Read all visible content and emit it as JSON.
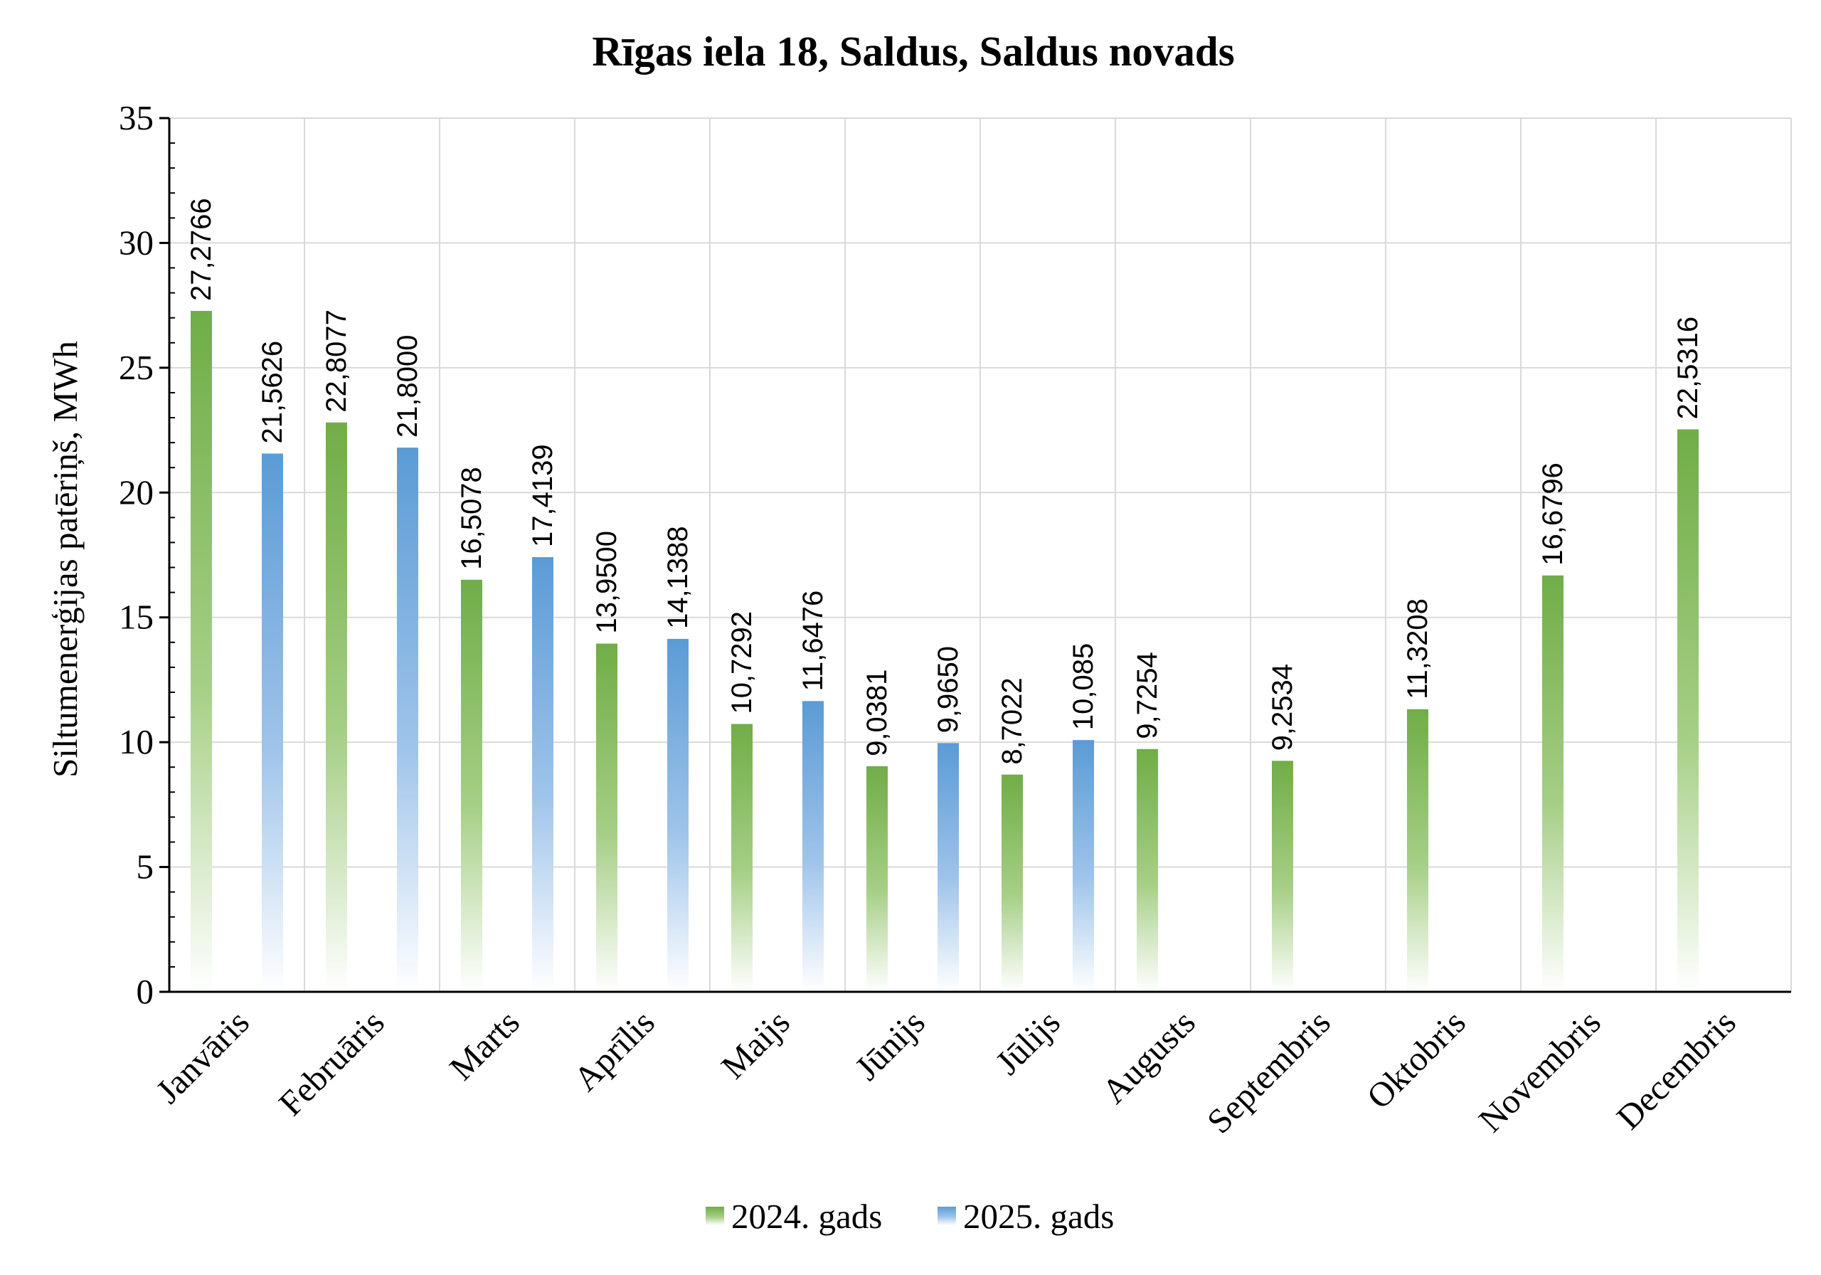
{
  "chart_data": {
    "type": "bar",
    "title": "Rīgas iela 18, Saldus, Saldus novads",
    "xlabel": "",
    "ylabel": "Siltumenerģijas patēriņš, MWh",
    "ylim": [
      0,
      35
    ],
    "yticks": [
      0,
      5,
      10,
      15,
      20,
      25,
      30,
      35
    ],
    "grid": true,
    "legend_position": "bottom",
    "categories": [
      "Janvāris",
      "Februāris",
      "Marts",
      "Aprīlis",
      "Maijs",
      "Jūnijs",
      "Jūlijs",
      "Augusts",
      "Septembris",
      "Oktobris",
      "Novembris",
      "Decembris"
    ],
    "series": [
      {
        "name": "2024. gads",
        "color": "#70ad47",
        "values": [
          27.2766,
          22.8077,
          16.5078,
          13.95,
          10.7292,
          9.0381,
          8.7022,
          9.7254,
          9.2534,
          11.3208,
          16.6796,
          22.5316
        ],
        "labels": [
          "27,2766",
          "22,8077",
          "16,5078",
          "13,9500",
          "10,7292",
          "9,0381",
          "8,7022",
          "9,7254",
          "9,2534",
          "11,3208",
          "16,6796",
          "22,5316"
        ]
      },
      {
        "name": "2025. gads",
        "color": "#5b9bd5",
        "values": [
          21.5626,
          21.8,
          17.4139,
          14.1388,
          11.6476,
          9.965,
          10.085,
          null,
          null,
          null,
          null,
          null
        ],
        "labels": [
          "21,5626",
          "21,8000",
          "17,4139",
          "14,1388",
          "11,6476",
          "9,9650",
          "10,085",
          null,
          null,
          null,
          null,
          null
        ]
      }
    ]
  }
}
